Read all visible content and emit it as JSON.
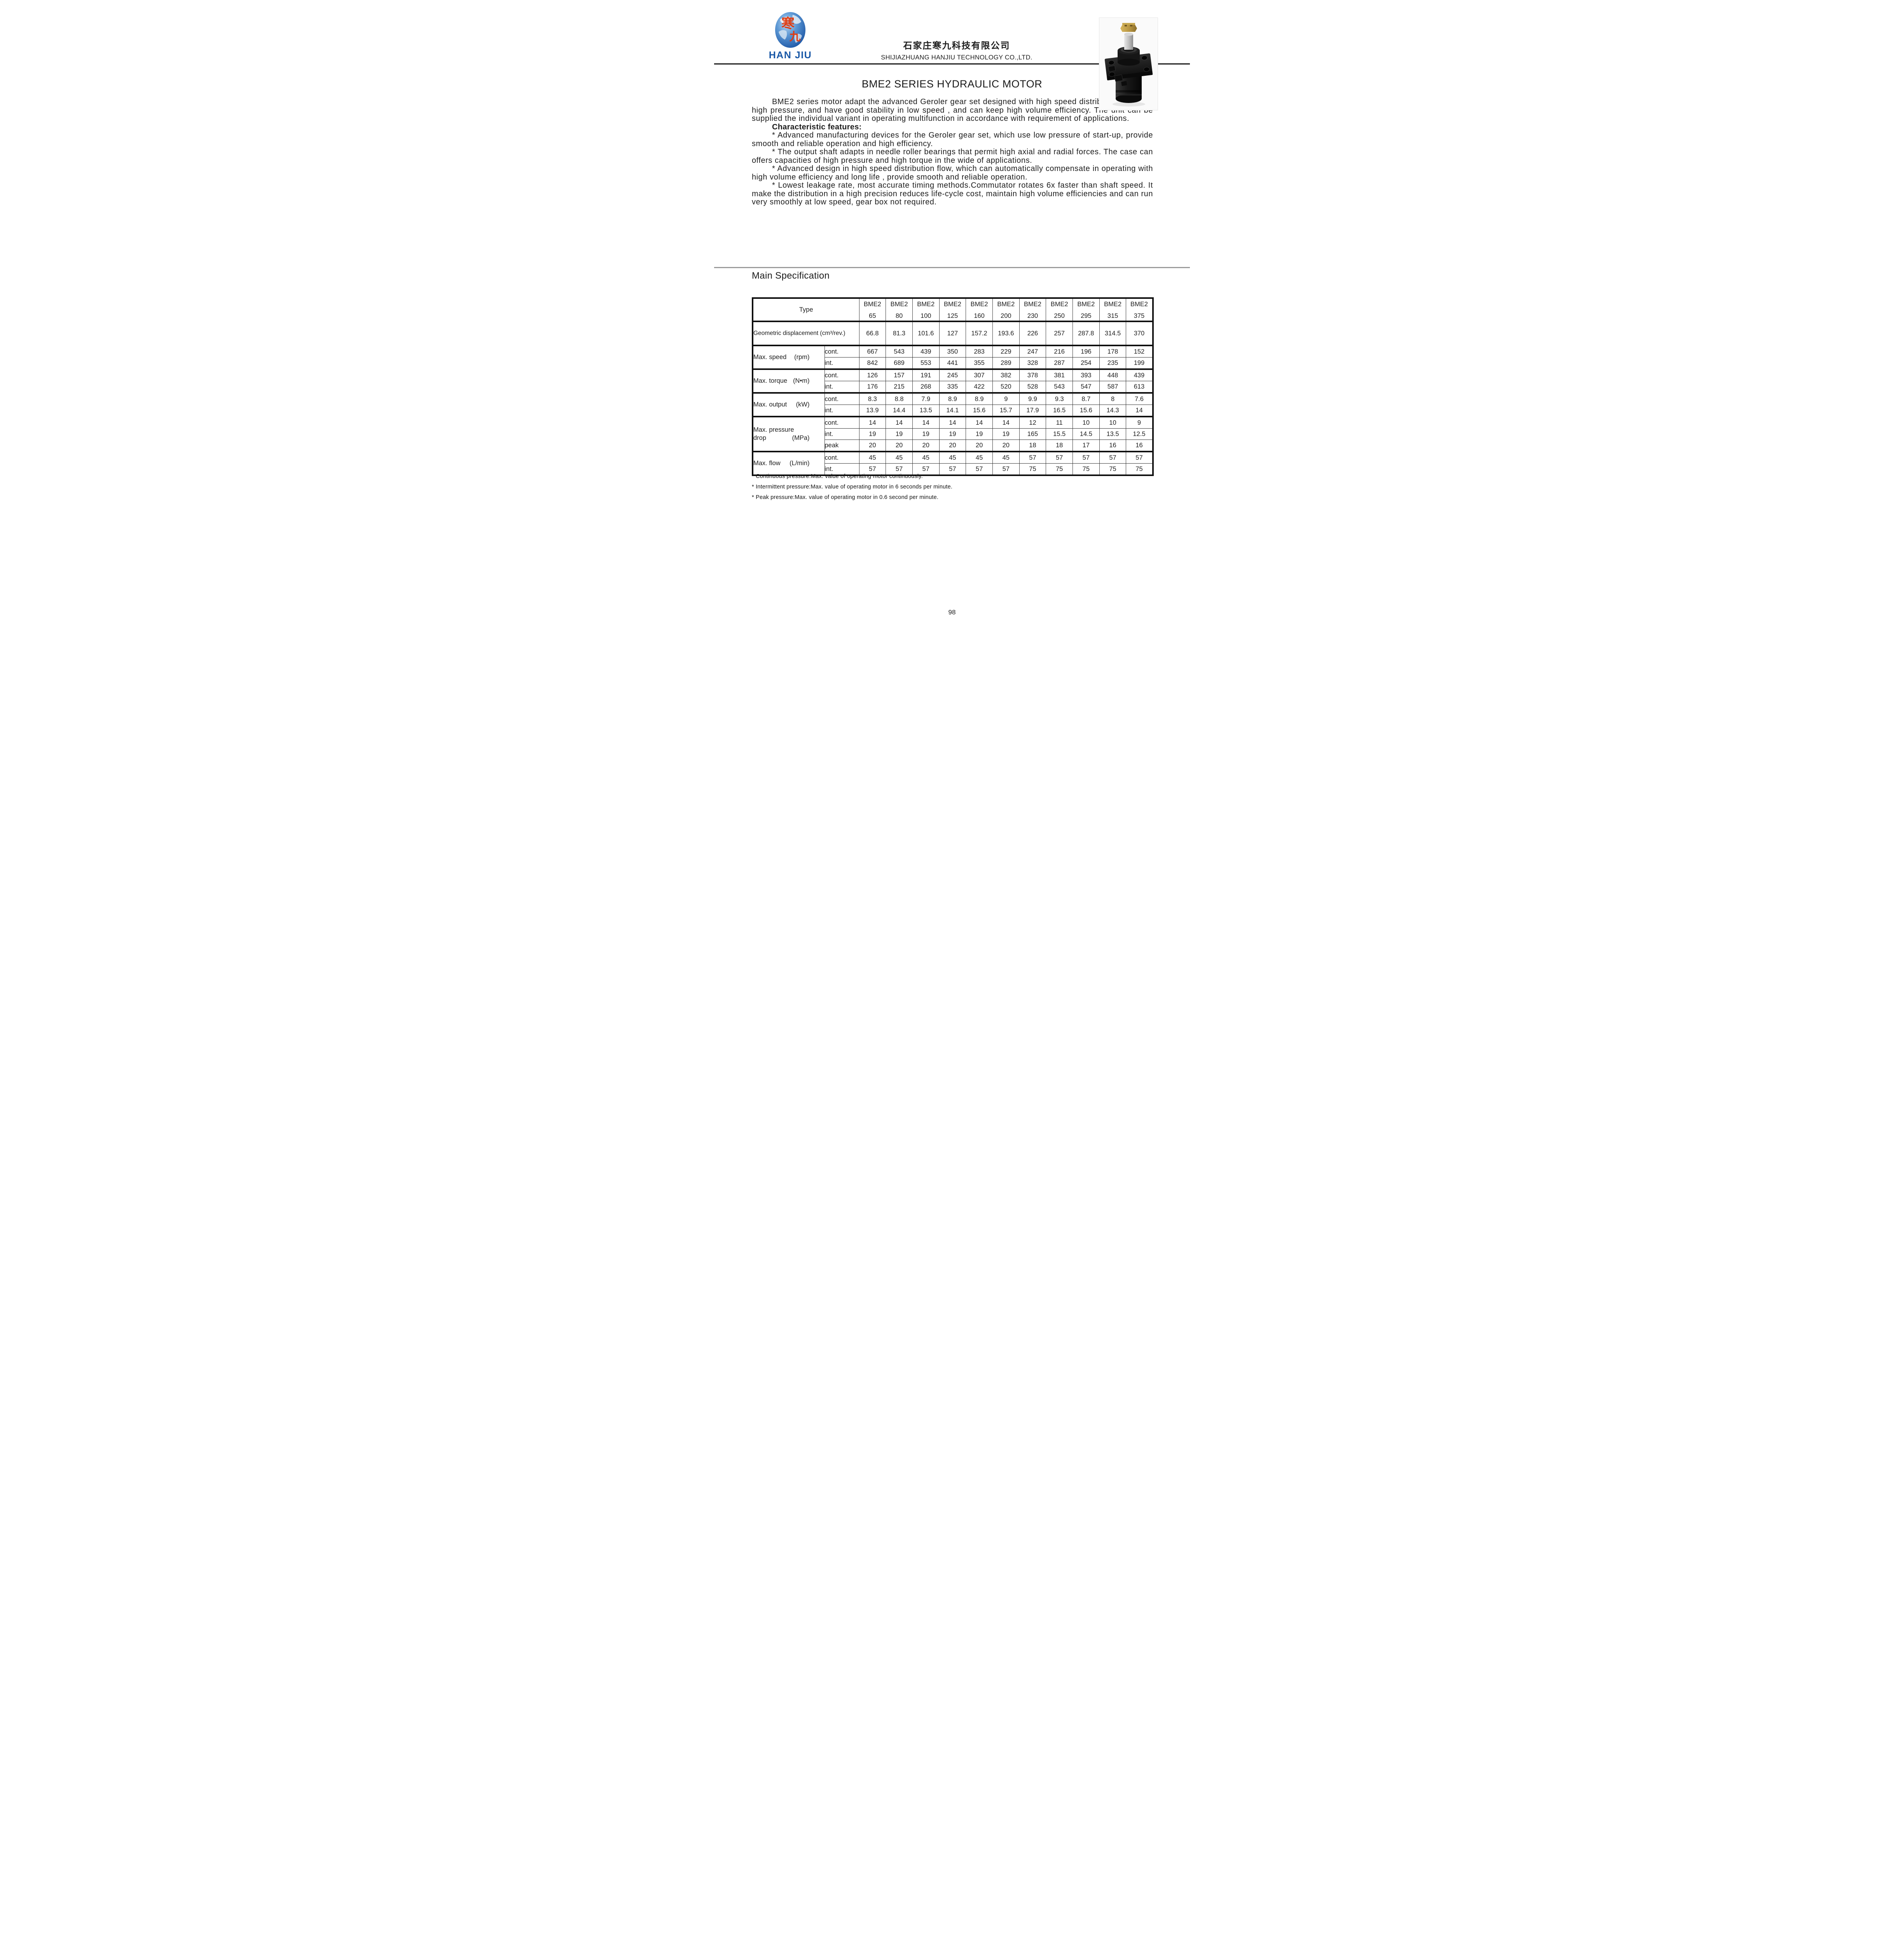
{
  "colors": {
    "brand_blue": "#1857a6",
    "logo_red": "#e23a0e"
  },
  "header": {
    "logo_text": "HAN JIU",
    "globe_char_top": "寒",
    "globe_char_bottom": "九",
    "company_cn": "石家庄寒九科技有限公司",
    "company_en": "SHIJIAZHUANG HANJIU TECHNOLOGY CO.,LTD."
  },
  "title": "BME2 SERIES HYDRAULIC MOTOR",
  "intro": "BME2 series motor adapt the advanced Geroler gear set designed with high speed distribution flow and high pressure, and have good stability in low speed , and can keep high volume efficiency. The unit can be supplied the individual variant in operating multifunction in accordance with requirement of applications.",
  "features_heading": "Characteristic features:",
  "features": [
    "* Advanced manufacturing devices for the Geroler gear set, which use low pressure of start-up, provide smooth and reliable operation and high efficiency.",
    "* The output shaft adapts in needle roller bearings that permit high axial and radial forces. The case can offers capacities of high pressure and high torque in the wide of applications.",
    "* Advanced design in high speed distribution flow, which can automatically compensate in operating with high volume efficiency and long life , provide smooth and reliable operation.",
    "* Lowest leakage rate, most accurate timing methods.Commutator rotates 6x faster than shaft speed. It make the distribution in a high precision reduces life-cycle cost, maintain high volume efficiencies and can run very smoothly at low speed, gear box not required."
  ],
  "section_heading": "Main Specification",
  "spec_table": {
    "corner_label": "Type",
    "col_prefix": "BME2",
    "col_numbers": [
      "65",
      "80",
      "100",
      "125",
      "160",
      "200",
      "230",
      "250",
      "295",
      "315",
      "375"
    ],
    "sections": [
      {
        "name_lines": [
          "Geometric displacement (cm³/rev.)"
        ],
        "unit": "",
        "rows": [
          {
            "sub": null,
            "values": [
              "66.8",
              "81.3",
              "101.6",
              "127",
              "157.2",
              "193.6",
              "226",
              "257",
              "287.8",
              "314.5",
              "370"
            ]
          }
        ]
      },
      {
        "name_lines": [
          "Max. speed"
        ],
        "unit": "(rpm)",
        "rows": [
          {
            "sub": "cont.",
            "values": [
              "667",
              "543",
              "439",
              "350",
              "283",
              "229",
              "247",
              "216",
              "196",
              "178",
              "152"
            ]
          },
          {
            "sub": "int.",
            "values": [
              "842",
              "689",
              "553",
              "441",
              "355",
              "289",
              "328",
              "287",
              "254",
              "235",
              "199"
            ]
          }
        ]
      },
      {
        "name_lines": [
          "Max. torque"
        ],
        "unit": "(N•m)",
        "rows": [
          {
            "sub": "cont.",
            "values": [
              "126",
              "157",
              "191",
              "245",
              "307",
              "382",
              "378",
              "381",
              "393",
              "448",
              "439"
            ]
          },
          {
            "sub": "int.",
            "values": [
              "176",
              "215",
              "268",
              "335",
              "422",
              "520",
              "528",
              "543",
              "547",
              "587",
              "613"
            ]
          }
        ]
      },
      {
        "name_lines": [
          "Max. output"
        ],
        "unit": "(kW)",
        "rows": [
          {
            "sub": "cont.",
            "values": [
              "8.3",
              "8.8",
              "7.9",
              "8.9",
              "8.9",
              "9",
              "9.9",
              "9.3",
              "8.7",
              "8",
              "7.6"
            ]
          },
          {
            "sub": "int.",
            "values": [
              "13.9",
              "14.4",
              "13.5",
              "14.1",
              "15.6",
              "15.7",
              "17.9",
              "16.5",
              "15.6",
              "14.3",
              "14"
            ]
          }
        ]
      },
      {
        "name_lines": [
          "Max. pressure",
          "drop"
        ],
        "unit": "(MPa)",
        "rows": [
          {
            "sub": "cont.",
            "values": [
              "14",
              "14",
              "14",
              "14",
              "14",
              "14",
              "12",
              "11",
              "10",
              "10",
              "9"
            ]
          },
          {
            "sub": "int.",
            "values": [
              "19",
              "19",
              "19",
              "19",
              "19",
              "19",
              "165",
              "15.5",
              "14.5",
              "13.5",
              "12.5"
            ]
          },
          {
            "sub": "peak",
            "values": [
              "20",
              "20",
              "20",
              "20",
              "20",
              "20",
              "18",
              "18",
              "17",
              "16",
              "16"
            ]
          }
        ]
      },
      {
        "name_lines": [
          "Max. flow"
        ],
        "unit": "(L/min)",
        "rows": [
          {
            "sub": "cont.",
            "values": [
              "45",
              "45",
              "45",
              "45",
              "45",
              "45",
              "57",
              "57",
              "57",
              "57",
              "57"
            ]
          },
          {
            "sub": "int.",
            "values": [
              "57",
              "57",
              "57",
              "57",
              "57",
              "57",
              "75",
              "75",
              "75",
              "75",
              "75"
            ]
          }
        ]
      }
    ]
  },
  "footnotes": [
    "* Continuous pressure:Max. value of operating motor continuously.",
    "* Intermittent pressure:Max. value of operating motor in 6 seconds per minute.",
    "* Peak pressure:Max. value of operating motor in 0.6 second per minute."
  ],
  "page_number": "98"
}
